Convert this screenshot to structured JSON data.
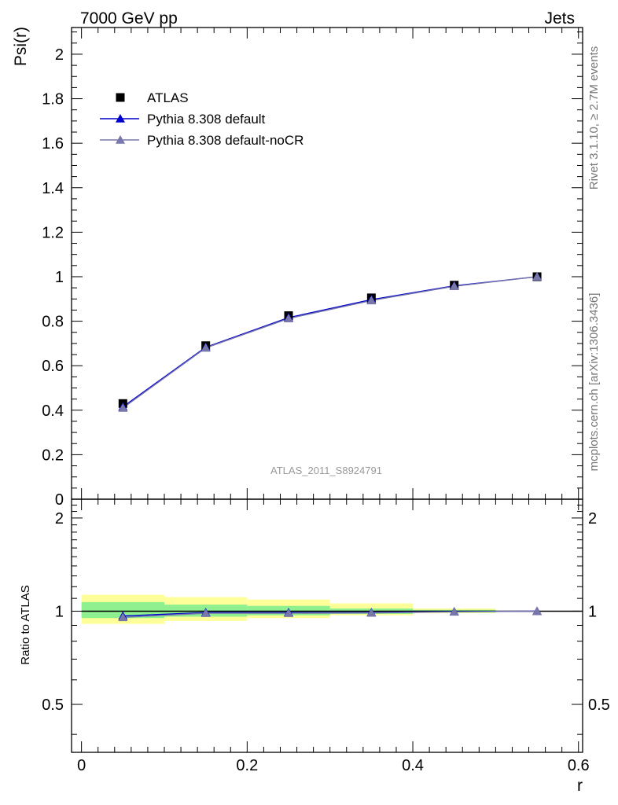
{
  "header": {
    "left": "7000 GeV pp",
    "right": "Jets"
  },
  "side_labels": {
    "rivet": "Rivet 3.1.10, ≥ 2.7M events",
    "mcplots": "mcplots.cern.ch [arXiv:1306.3436]"
  },
  "analysis_label": "ATLAS_2011_S8924791",
  "colors": {
    "data": "#000000",
    "default": "#0000cc",
    "noCR": "#7777aa",
    "band_inner": "#8ef08e",
    "band_outer": "#ffff99"
  },
  "chart_data": [
    {
      "type": "line",
      "panel": "main",
      "ylabel": "Psi(r)",
      "xlim": [
        -0.012,
        0.605
      ],
      "ylim": [
        0,
        2.12
      ],
      "yticks": [
        0,
        0.2,
        0.4,
        0.6,
        0.8,
        1,
        1.2,
        1.4,
        1.6,
        1.8,
        2
      ],
      "ytick_labels": [
        "0",
        "0.2",
        "0.4",
        "0.6",
        "0.8",
        "1",
        "1.2",
        "1.4",
        "1.6",
        "1.8",
        "2"
      ],
      "x": [
        0.05,
        0.15,
        0.25,
        0.35,
        0.45,
        0.55
      ],
      "legend": {
        "placement": "top-left"
      },
      "series": [
        {
          "name": "ATLAS",
          "marker": "square",
          "values": [
            0.43,
            0.69,
            0.825,
            0.905,
            0.962,
            1.0
          ]
        },
        {
          "name": "Pythia 8.308 default",
          "marker": "triangle",
          "values": [
            0.415,
            0.683,
            0.816,
            0.897,
            0.959,
            1.0
          ]
        },
        {
          "name": "Pythia 8.308 default-noCR",
          "marker": "triangle",
          "values": [
            0.41,
            0.68,
            0.812,
            0.893,
            0.957,
            1.0
          ]
        }
      ]
    },
    {
      "type": "line",
      "panel": "ratio",
      "xlabel": "r",
      "ylabel": "Ratio to ATLAS",
      "xlim": [
        -0.012,
        0.605
      ],
      "ylim": [
        0.35,
        2.3
      ],
      "yticks": [
        0.5,
        1,
        2
      ],
      "ytick_labels": [
        "0.5",
        "1",
        "2"
      ],
      "xticks": [
        0,
        0.2,
        0.4,
        0.6
      ],
      "xtick_labels": [
        "0",
        "0.2",
        "0.4",
        "0.6"
      ],
      "x": [
        0.05,
        0.15,
        0.25,
        0.35,
        0.45,
        0.55
      ],
      "bands": [
        {
          "x0": 0.0,
          "x1": 0.1,
          "inner": [
            0.95,
            1.07
          ],
          "outer": [
            0.91,
            1.13
          ]
        },
        {
          "x0": 0.1,
          "x1": 0.2,
          "inner": [
            0.96,
            1.05
          ],
          "outer": [
            0.93,
            1.11
          ]
        },
        {
          "x0": 0.2,
          "x1": 0.3,
          "inner": [
            0.97,
            1.04
          ],
          "outer": [
            0.95,
            1.09
          ]
        },
        {
          "x0": 0.3,
          "x1": 0.4,
          "inner": [
            0.98,
            1.02
          ],
          "outer": [
            0.97,
            1.06
          ]
        },
        {
          "x0": 0.4,
          "x1": 0.5,
          "inner": [
            0.99,
            1.01
          ],
          "outer": [
            0.985,
            1.02
          ]
        }
      ],
      "series": [
        {
          "name": "Pythia 8.308 default",
          "values": [
            0.965,
            0.99,
            0.99,
            0.99,
            0.997,
            1.0
          ]
        },
        {
          "name": "Pythia 8.308 default-noCR",
          "values": [
            0.955,
            0.985,
            0.985,
            0.987,
            0.995,
            1.0
          ]
        }
      ]
    }
  ]
}
